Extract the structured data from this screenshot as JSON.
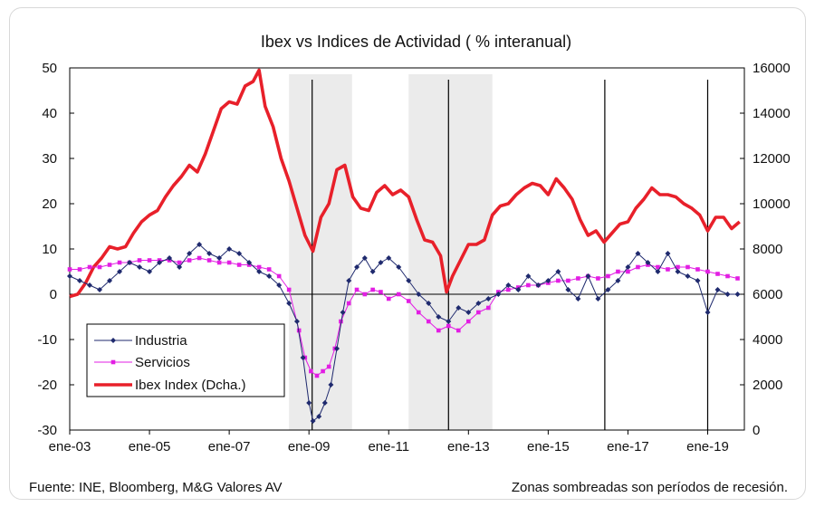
{
  "colors": {
    "industria": "#1f2a6e",
    "servicios": "#e21ee3",
    "ibex": "#e8202a",
    "recession": "#ebebeb"
  },
  "footer": {
    "source": "Fuente: INE, Bloomberg, M&G Valores AV",
    "note": "Zonas sombreadas son períodos de recesión."
  },
  "chart_data": {
    "type": "line",
    "title": "Ibex vs Indices de Actividad ( % interanual)",
    "x_ticks": [
      "ene-03",
      "ene-05",
      "ene-07",
      "ene-09",
      "ene-11",
      "ene-13",
      "ene-15",
      "ene-17",
      "ene-19"
    ],
    "x_range": [
      2003.0,
      2019.92
    ],
    "y_left": {
      "range": [
        -30,
        50
      ],
      "ticks": [
        "50",
        "40",
        "30",
        "20",
        "10",
        "0",
        "-10",
        "-20",
        "-30"
      ]
    },
    "y_right": {
      "range": [
        0,
        16000
      ],
      "ticks": [
        "16000",
        "14000",
        "12000",
        "10000",
        "8000",
        "6000",
        "4000",
        "2000",
        "0"
      ]
    },
    "recession_bands": [
      [
        2008.5,
        2010.08
      ],
      [
        2011.5,
        2013.6
      ]
    ],
    "vertical_lines": [
      2009.08,
      2012.5,
      2016.42,
      2019.0
    ],
    "legend": [
      "Industria",
      "Servicios",
      "Ibex Index (Dcha.)"
    ],
    "series": [
      {
        "name": "Ibex Index (Dcha.)",
        "axis": "right",
        "x": [
          2003.0,
          2003.2,
          2003.4,
          2003.6,
          2003.8,
          2004.0,
          2004.2,
          2004.4,
          2004.6,
          2004.8,
          2005.0,
          2005.2,
          2005.4,
          2005.6,
          2005.8,
          2006.0,
          2006.2,
          2006.4,
          2006.6,
          2006.8,
          2007.0,
          2007.2,
          2007.4,
          2007.6,
          2007.75,
          2007.9,
          2008.1,
          2008.3,
          2008.5,
          2008.7,
          2008.9,
          2009.1,
          2009.3,
          2009.5,
          2009.7,
          2009.9,
          2010.1,
          2010.3,
          2010.5,
          2010.7,
          2010.9,
          2011.1,
          2011.3,
          2011.5,
          2011.7,
          2011.9,
          2012.1,
          2012.3,
          2012.45,
          2012.6,
          2012.8,
          2013.0,
          2013.2,
          2013.4,
          2013.6,
          2013.8,
          2014.0,
          2014.2,
          2014.4,
          2014.6,
          2014.8,
          2015.0,
          2015.2,
          2015.4,
          2015.6,
          2015.8,
          2016.0,
          2016.2,
          2016.4,
          2016.6,
          2016.8,
          2017.0,
          2017.2,
          2017.4,
          2017.6,
          2017.8,
          2018.0,
          2018.2,
          2018.4,
          2018.6,
          2018.8,
          2019.0,
          2019.2,
          2019.4,
          2019.6,
          2019.8
        ],
        "values": [
          5900,
          6000,
          6500,
          7200,
          7600,
          8100,
          8000,
          8100,
          8700,
          9200,
          9500,
          9700,
          10300,
          10800,
          11200,
          11700,
          11400,
          12200,
          13200,
          14200,
          14500,
          14400,
          15200,
          15400,
          15900,
          14300,
          13400,
          12000,
          11000,
          9800,
          8600,
          7900,
          9400,
          10000,
          11500,
          11700,
          10300,
          9800,
          9700,
          10500,
          10800,
          10400,
          10600,
          10300,
          9300,
          8400,
          8300,
          7700,
          6100,
          6800,
          7500,
          8200,
          8200,
          8400,
          9500,
          9900,
          10000,
          10400,
          10700,
          10900,
          10800,
          10400,
          11100,
          10700,
          10200,
          9300,
          8600,
          8800,
          8300,
          8700,
          9100,
          9200,
          9800,
          10200,
          10700,
          10400,
          10400,
          10300,
          10000,
          9800,
          9500,
          8800,
          9400,
          9400,
          8900,
          9200
        ]
      },
      {
        "name": "Servicios",
        "axis": "left",
        "x": [
          2003.0,
          2003.25,
          2003.5,
          2003.75,
          2004.0,
          2004.25,
          2004.5,
          2004.75,
          2005.0,
          2005.25,
          2005.5,
          2005.75,
          2006.0,
          2006.25,
          2006.5,
          2006.75,
          2007.0,
          2007.25,
          2007.5,
          2007.75,
          2008.0,
          2008.25,
          2008.5,
          2008.75,
          2008.9,
          2009.05,
          2009.2,
          2009.35,
          2009.5,
          2009.65,
          2009.8,
          2010.0,
          2010.2,
          2010.4,
          2010.6,
          2010.8,
          2011.0,
          2011.25,
          2011.5,
          2011.75,
          2012.0,
          2012.25,
          2012.5,
          2012.75,
          2013.0,
          2013.25,
          2013.5,
          2013.75,
          2014.0,
          2014.25,
          2014.5,
          2014.75,
          2015.0,
          2015.25,
          2015.5,
          2015.75,
          2016.0,
          2016.25,
          2016.5,
          2016.75,
          2017.0,
          2017.25,
          2017.5,
          2017.75,
          2018.0,
          2018.25,
          2018.5,
          2018.75,
          2019.0,
          2019.25,
          2019.5,
          2019.75
        ],
        "values": [
          5.5,
          5.5,
          6,
          6,
          6.5,
          7,
          7,
          7.5,
          7.5,
          7.5,
          7.5,
          7,
          7.5,
          8,
          7.5,
          7,
          7,
          6.5,
          6.5,
          6,
          5.5,
          4,
          1,
          -8,
          -14,
          -17,
          -18,
          -17,
          -16,
          -12,
          -6,
          -2,
          1,
          0,
          1,
          0.5,
          -1,
          0,
          -1.5,
          -4,
          -6,
          -8,
          -7,
          -8,
          -6,
          -4,
          -3,
          0.5,
          1,
          1.5,
          2,
          2,
          2.5,
          3,
          3,
          3.5,
          4,
          3.5,
          4,
          5,
          5,
          6,
          6.5,
          6,
          5.5,
          6,
          6,
          5.5,
          5,
          4.5,
          4,
          3.5
        ]
      },
      {
        "name": "Industria",
        "axis": "left",
        "x": [
          2003.0,
          2003.25,
          2003.5,
          2003.75,
          2004.0,
          2004.25,
          2004.5,
          2004.75,
          2005.0,
          2005.25,
          2005.5,
          2005.75,
          2006.0,
          2006.25,
          2006.5,
          2006.75,
          2007.0,
          2007.25,
          2007.5,
          2007.75,
          2008.0,
          2008.25,
          2008.5,
          2008.7,
          2008.85,
          2009.0,
          2009.1,
          2009.25,
          2009.4,
          2009.55,
          2009.7,
          2009.85,
          2010.0,
          2010.2,
          2010.4,
          2010.6,
          2010.8,
          2011.0,
          2011.25,
          2011.5,
          2011.75,
          2012.0,
          2012.25,
          2012.5,
          2012.75,
          2013.0,
          2013.25,
          2013.5,
          2013.75,
          2014.0,
          2014.25,
          2014.5,
          2014.75,
          2015.0,
          2015.25,
          2015.5,
          2015.75,
          2016.0,
          2016.25,
          2016.5,
          2016.75,
          2017.0,
          2017.25,
          2017.5,
          2017.75,
          2018.0,
          2018.25,
          2018.5,
          2018.75,
          2019.0,
          2019.25,
          2019.5,
          2019.75
        ],
        "values": [
          4,
          3,
          2,
          1,
          3,
          5,
          7,
          6,
          5,
          7,
          8,
          6,
          9,
          11,
          9,
          8,
          10,
          9,
          7,
          5,
          4,
          2,
          -2,
          -6,
          -14,
          -24,
          -28,
          -27,
          -24,
          -20,
          -12,
          -4,
          3,
          6,
          8,
          5,
          7,
          8,
          6,
          3,
          0,
          -2,
          -5,
          -6,
          -3,
          -4,
          -2,
          -1,
          0,
          2,
          1,
          4,
          2,
          3,
          5,
          1,
          -1,
          4,
          -1,
          1,
          3,
          6,
          9,
          7,
          5,
          9,
          5,
          4,
          3,
          -4,
          1,
          0,
          0
        ]
      }
    ]
  }
}
